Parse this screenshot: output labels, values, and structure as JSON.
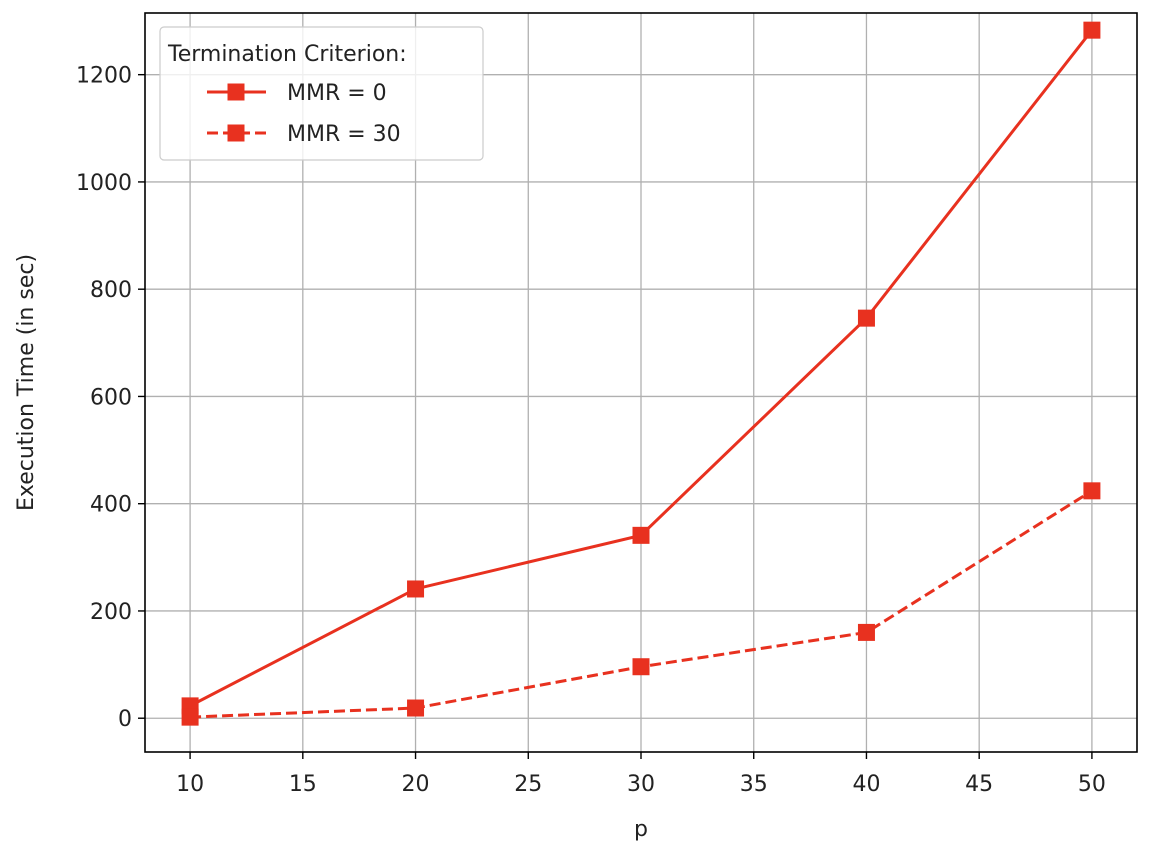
{
  "chart_data": {
    "type": "line",
    "title": "",
    "xlabel": "p",
    "ylabel": "Execution Time (in sec)",
    "xlim": [
      8.0,
      52.0
    ],
    "ylim": [
      -63,
      1315
    ],
    "xticks": [
      10,
      15,
      20,
      25,
      30,
      35,
      40,
      45,
      50
    ],
    "yticks": [
      0,
      200,
      400,
      600,
      800,
      1000,
      1200
    ],
    "grid": true,
    "legend": {
      "title": "Termination Criterion:",
      "placement": "top-left"
    },
    "x": [
      10,
      20,
      30,
      40,
      50
    ],
    "series": [
      {
        "name": "MMR = 0",
        "values": [
          23,
          241,
          341,
          746,
          1283
        ],
        "color": "#e8311f",
        "line_style": "solid",
        "marker": "square"
      },
      {
        "name": "MMR = 30",
        "values": [
          2,
          19,
          96,
          160,
          424
        ],
        "color": "#e8311f",
        "line_style": "dashed",
        "marker": "square"
      }
    ]
  }
}
